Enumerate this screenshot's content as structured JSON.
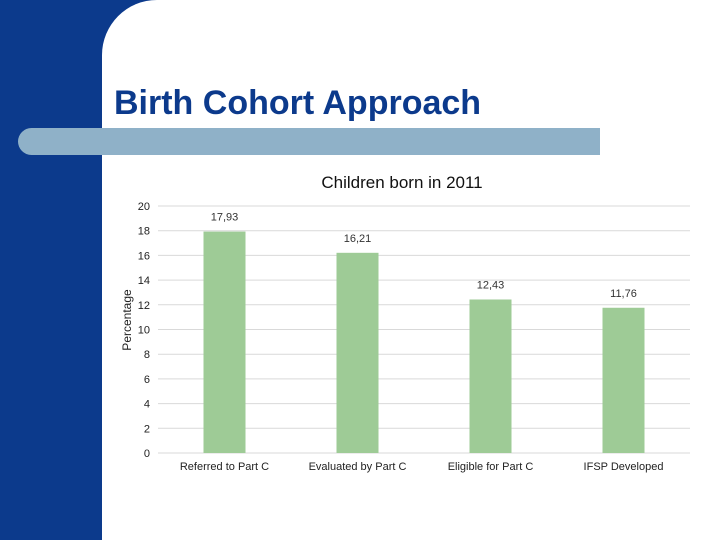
{
  "slide": {
    "title": "Birth Cohort Approach"
  },
  "colors": {
    "navy": "#0c3a8c",
    "title_bar": "#8fb1c8",
    "bar": "#9ecb96",
    "grid": "#d9d9d9"
  },
  "chart_data": {
    "type": "bar",
    "title": "Children born in 2011",
    "xlabel": "",
    "ylabel": "Percentage",
    "categories": [
      "Referred to Part C",
      "Evaluated by Part C",
      "Eligible for Part C",
      "IFSP Developed"
    ],
    "values": [
      17.93,
      16.21,
      12.43,
      11.76
    ],
    "value_labels": [
      "17,93",
      "16,21",
      "12,43",
      "11,76"
    ],
    "ylim": [
      0,
      20
    ],
    "yticks": [
      "0",
      "2",
      "4",
      "6",
      "8",
      "10",
      "12",
      "14",
      "16",
      "18",
      "20"
    ],
    "grid": true,
    "legend": "none"
  }
}
